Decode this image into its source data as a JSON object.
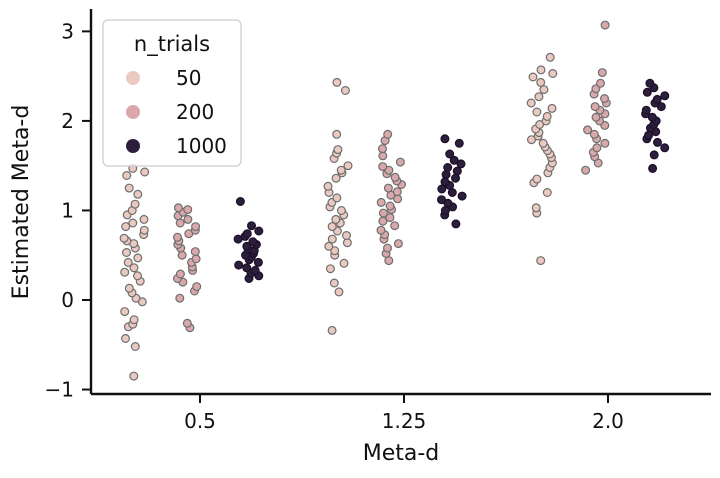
{
  "chart_data": {
    "type": "scatter",
    "subtype": "strip",
    "xlabel": "Meta-d",
    "ylabel": "Estimated Meta-d",
    "categories": [
      "0.5",
      "1.25",
      "2.0"
    ],
    "ylim": [
      -1.05,
      3.25
    ],
    "yticks": [
      -1,
      0,
      1,
      2,
      3
    ],
    "grid": false,
    "legend": {
      "title": "n_trials",
      "position": "top-left",
      "entries": [
        "50",
        "200",
        "1000"
      ]
    },
    "series": [
      {
        "name": "50",
        "color": "#eac9c0",
        "values": [
          [
            -0.85,
            -0.52,
            -0.43,
            -0.3,
            -0.27,
            -0.22,
            -0.13,
            -0.02,
            0.02,
            0.08,
            0.13,
            0.21,
            0.27,
            0.31,
            0.36,
            0.42,
            0.47,
            0.53,
            0.58,
            0.63,
            0.66,
            0.69,
            0.73,
            0.78,
            0.82,
            0.86,
            0.9,
            0.95,
            1.0,
            1.07,
            1.18,
            1.25,
            1.39,
            1.43,
            1.47
          ],
          [
            -0.34,
            0.09,
            0.19,
            0.35,
            0.41,
            0.5,
            0.55,
            0.6,
            0.64,
            0.68,
            0.72,
            0.77,
            0.82,
            0.86,
            0.9,
            0.95,
            1.0,
            1.04,
            1.09,
            1.14,
            1.2,
            1.27,
            1.36,
            1.42,
            1.45,
            1.5,
            1.58,
            1.64,
            1.68,
            1.85,
            2.34,
            2.43
          ],
          [
            0.44,
            0.97,
            1.03,
            1.2,
            1.31,
            1.35,
            1.42,
            1.48,
            1.53,
            1.59,
            1.63,
            1.67,
            1.71,
            1.75,
            1.79,
            1.83,
            1.87,
            1.91,
            1.96,
            2.0,
            2.05,
            2.1,
            2.14,
            2.2,
            2.27,
            2.35,
            2.43,
            2.49,
            2.53,
            2.57,
            2.71
          ]
        ]
      },
      {
        "name": "200",
        "color": "#d8a8ab",
        "values": [
          [
            -0.31,
            -0.26,
            0.02,
            0.1,
            0.15,
            0.2,
            0.24,
            0.29,
            0.33,
            0.37,
            0.42,
            0.46,
            0.5,
            0.54,
            0.58,
            0.62,
            0.66,
            0.7,
            0.74,
            0.78,
            0.82,
            0.86,
            0.9,
            0.94,
            0.98,
            1.01,
            1.03
          ],
          [
            0.44,
            0.52,
            0.58,
            0.63,
            0.68,
            0.73,
            0.78,
            0.83,
            0.88,
            0.92,
            0.97,
            1.01,
            1.05,
            1.09,
            1.13,
            1.17,
            1.21,
            1.25,
            1.29,
            1.33,
            1.37,
            1.41,
            1.45,
            1.49,
            1.54,
            1.61,
            1.69,
            1.78,
            1.85
          ],
          [
            1.45,
            1.53,
            1.6,
            1.65,
            1.7,
            1.75,
            1.8,
            1.85,
            1.9,
            1.95,
            2.0,
            2.04,
            2.08,
            2.12,
            2.16,
            2.2,
            2.25,
            2.3,
            2.36,
            2.42,
            2.54,
            3.07
          ]
        ]
      },
      {
        "name": "1000",
        "color": "#2d1e3e",
        "values": [
          [
            0.24,
            0.27,
            0.3,
            0.33,
            0.36,
            0.39,
            0.42,
            0.45,
            0.48,
            0.5,
            0.52,
            0.55,
            0.57,
            0.6,
            0.62,
            0.65,
            0.68,
            0.71,
            0.74,
            0.77,
            0.83,
            1.1
          ],
          [
            0.85,
            0.95,
            1.0,
            1.04,
            1.08,
            1.12,
            1.16,
            1.2,
            1.24,
            1.28,
            1.32,
            1.36,
            1.4,
            1.44,
            1.48,
            1.52,
            1.56,
            1.63,
            1.75,
            1.8
          ],
          [
            1.47,
            1.62,
            1.7,
            1.76,
            1.8,
            1.84,
            1.88,
            1.92,
            1.96,
            2.0,
            2.04,
            2.08,
            2.12,
            2.16,
            2.2,
            2.24,
            2.28,
            2.32,
            2.37,
            2.42
          ]
        ]
      }
    ]
  }
}
